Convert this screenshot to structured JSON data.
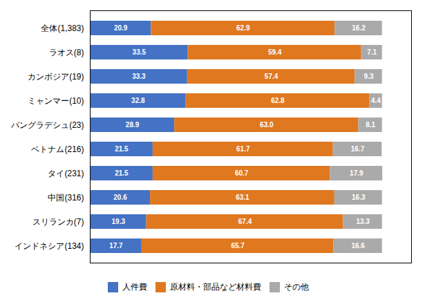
{
  "chart_data": {
    "type": "bar",
    "orientation": "horizontal",
    "stacked": true,
    "categories": [
      "全体(1,383)",
      "ラオス(8)",
      "カンボジア(19)",
      "ミャンマー(10)",
      "バングラデシュ(23)",
      "ベトナム(216)",
      "タイ(231)",
      "中国(316)",
      "スリランカ(7)",
      "インドネシア(134)"
    ],
    "series": [
      {
        "name": "人件費",
        "color": "#4472c4",
        "values": [
          20.9,
          33.5,
          33.3,
          32.8,
          28.9,
          21.5,
          21.5,
          20.6,
          19.3,
          17.7
        ],
        "value_labels": [
          "20.9",
          "33.5",
          "33.3",
          "32.8",
          "28.9",
          "21.5",
          "21.5",
          "20.6",
          "19.3",
          "17.7"
        ]
      },
      {
        "name": "原材料・部品など材料費",
        "color": "#e07820",
        "values": [
          62.9,
          59.4,
          57.4,
          62.8,
          63.0,
          61.7,
          60.7,
          63.1,
          67.4,
          65.7
        ],
        "value_labels": [
          "62.9",
          "59.4",
          "57.4",
          "62.8",
          "63.0",
          "61.7",
          "60.7",
          "63.1",
          "67.4",
          "65.7"
        ]
      },
      {
        "name": "その他",
        "color": "#aaaaaa",
        "values": [
          16.2,
          7.1,
          9.3,
          4.4,
          8.1,
          16.7,
          17.9,
          16.3,
          13.3,
          16.6
        ],
        "value_labels": [
          "16.2",
          "7.1",
          "9.3",
          "4.4",
          "8.1",
          "16.7",
          "17.9",
          "16.3",
          "13.3",
          "16.6"
        ]
      }
    ],
    "xlim": [
      0,
      110
    ],
    "xticks": [],
    "grid": false,
    "legend": "bottom",
    "data_labels": true,
    "tick_labels": "y"
  }
}
